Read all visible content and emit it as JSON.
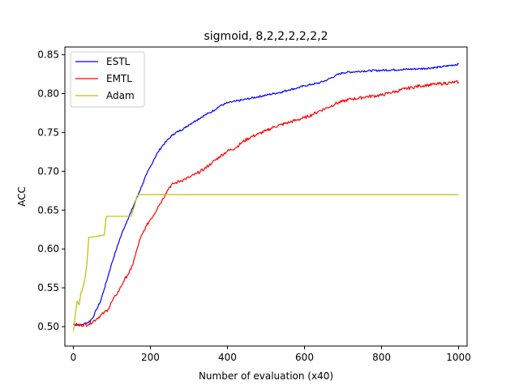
{
  "chart_data": {
    "type": "line",
    "title": "sigmoid, 8,2,2,2,2,2,2",
    "xlabel": "Number of evaluation (x40)",
    "ylabel": "ACC",
    "xlim": [
      -22,
      1022
    ],
    "ylim": [
      0.475,
      0.86
    ],
    "xticks": [
      0,
      200,
      400,
      600,
      800,
      1000
    ],
    "yticks": [
      0.5,
      0.55,
      0.6,
      0.65,
      0.7,
      0.75,
      0.8,
      0.85
    ],
    "ytick_labels": [
      "0.50",
      "0.55",
      "0.60",
      "0.65",
      "0.70",
      "0.75",
      "0.80",
      "0.85"
    ],
    "grid": false,
    "legend_position": "top-left",
    "series": [
      {
        "name": "ESTL",
        "color": "#0000ff",
        "x": [
          0,
          10,
          20,
          30,
          40,
          50,
          60,
          70,
          80,
          90,
          100,
          110,
          120,
          130,
          140,
          150,
          160,
          170,
          180,
          190,
          200,
          210,
          220,
          230,
          240,
          250,
          260,
          275,
          290,
          300,
          320,
          340,
          360,
          380,
          400,
          420,
          440,
          460,
          480,
          500,
          520,
          540,
          560,
          580,
          600,
          620,
          640,
          660,
          680,
          700,
          750,
          800,
          850,
          900,
          950,
          1000
        ],
        "y": [
          0.503,
          0.502,
          0.502,
          0.504,
          0.506,
          0.511,
          0.522,
          0.532,
          0.548,
          0.565,
          0.582,
          0.597,
          0.612,
          0.625,
          0.637,
          0.648,
          0.66,
          0.672,
          0.684,
          0.696,
          0.706,
          0.716,
          0.725,
          0.732,
          0.738,
          0.743,
          0.748,
          0.752,
          0.756,
          0.76,
          0.766,
          0.772,
          0.777,
          0.784,
          0.788,
          0.79,
          0.792,
          0.794,
          0.796,
          0.798,
          0.8,
          0.802,
          0.805,
          0.807,
          0.81,
          0.812,
          0.814,
          0.818,
          0.823,
          0.827,
          0.829,
          0.83,
          0.831,
          0.832,
          0.834,
          0.838
        ]
      },
      {
        "name": "EMTL",
        "color": "#ff0000",
        "x": [
          0,
          20,
          40,
          60,
          80,
          90,
          100,
          110,
          120,
          130,
          140,
          150,
          160,
          170,
          180,
          190,
          200,
          210,
          220,
          230,
          240,
          250,
          260,
          270,
          280,
          290,
          300,
          320,
          340,
          360,
          380,
          400,
          420,
          440,
          460,
          480,
          500,
          520,
          540,
          560,
          580,
          600,
          620,
          640,
          660,
          680,
          700,
          720,
          740,
          760,
          780,
          800,
          820,
          840,
          860,
          880,
          900,
          920,
          940,
          960,
          980,
          1000
        ],
        "y": [
          0.503,
          0.502,
          0.503,
          0.51,
          0.518,
          0.522,
          0.532,
          0.54,
          0.548,
          0.558,
          0.566,
          0.574,
          0.59,
          0.608,
          0.62,
          0.63,
          0.638,
          0.645,
          0.655,
          0.662,
          0.672,
          0.68,
          0.684,
          0.686,
          0.688,
          0.69,
          0.692,
          0.697,
          0.703,
          0.711,
          0.719,
          0.726,
          0.73,
          0.738,
          0.744,
          0.748,
          0.752,
          0.757,
          0.76,
          0.763,
          0.766,
          0.769,
          0.773,
          0.778,
          0.782,
          0.787,
          0.79,
          0.793,
          0.794,
          0.796,
          0.797,
          0.798,
          0.801,
          0.803,
          0.806,
          0.808,
          0.81,
          0.811,
          0.812,
          0.813,
          0.814,
          0.815
        ]
      },
      {
        "name": "Adam",
        "color": "#bfbf00",
        "x": [
          0,
          3,
          6,
          10,
          15,
          20,
          22,
          26,
          30,
          35,
          38,
          40,
          60,
          80,
          85,
          87,
          120,
          150,
          155,
          160,
          165,
          170,
          400,
          600,
          800,
          1000
        ],
        "y": [
          0.494,
          0.503,
          0.52,
          0.533,
          0.528,
          0.545,
          0.545,
          0.552,
          0.562,
          0.58,
          0.6,
          0.615,
          0.616,
          0.618,
          0.64,
          0.642,
          0.642,
          0.642,
          0.65,
          0.658,
          0.668,
          0.67,
          0.67,
          0.67,
          0.67,
          0.67
        ]
      }
    ]
  }
}
